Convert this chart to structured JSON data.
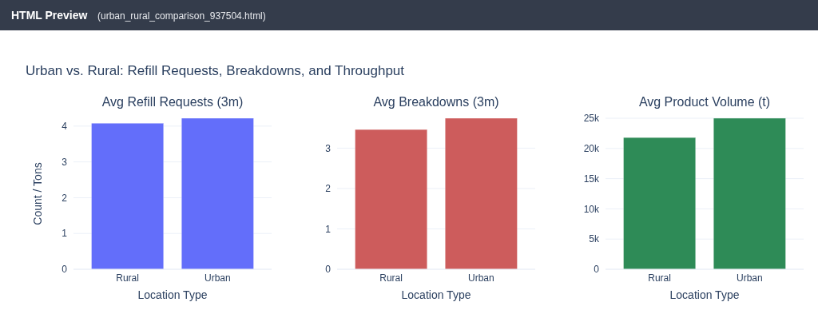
{
  "chart_data": [
    {
      "type": "bar",
      "title": "Avg Refill Requests (3m)",
      "xlabel": "Location Type",
      "ylabel": "Count / Tons",
      "categories": [
        "Rural",
        "Urban"
      ],
      "values": [
        4.08,
        4.22
      ],
      "color": "#636efa",
      "ylim": [
        0,
        4.22
      ],
      "yticks": [
        0,
        1,
        2,
        3,
        4
      ],
      "grid": "y",
      "annotations": [
        "HTML Preview",
        "(urban_rural_comparison_937504.html)",
        "Urban vs. Rural: Refill Requests, Breakdowns, and Throughput"
      ]
    },
    {
      "type": "bar",
      "title": "Avg Breakdowns (3m)",
      "xlabel": "Location Type",
      "categories": [
        "Rural",
        "Urban"
      ],
      "values": [
        3.46,
        3.74
      ],
      "color": "#cd5c5c",
      "ylim": [
        0,
        3.74
      ],
      "yticks": [
        0,
        1,
        2,
        3
      ],
      "grid": "y"
    },
    {
      "type": "bar",
      "title": "Avg Product Volume (t)",
      "xlabel": "Location Type",
      "categories": [
        "Rural",
        "Urban"
      ],
      "values": [
        21800,
        25000
      ],
      "color": "#2e8b57",
      "ylim": [
        0,
        25000
      ],
      "yticks": [
        {
          "value": 0,
          "label": "0"
        },
        {
          "value": 5000,
          "label": "5k"
        },
        {
          "value": 10000,
          "label": "10k"
        },
        {
          "value": 15000,
          "label": "15k"
        },
        {
          "value": 20000,
          "label": "20k"
        },
        {
          "value": 25000,
          "label": "25k"
        }
      ],
      "grid": "y"
    }
  ]
}
